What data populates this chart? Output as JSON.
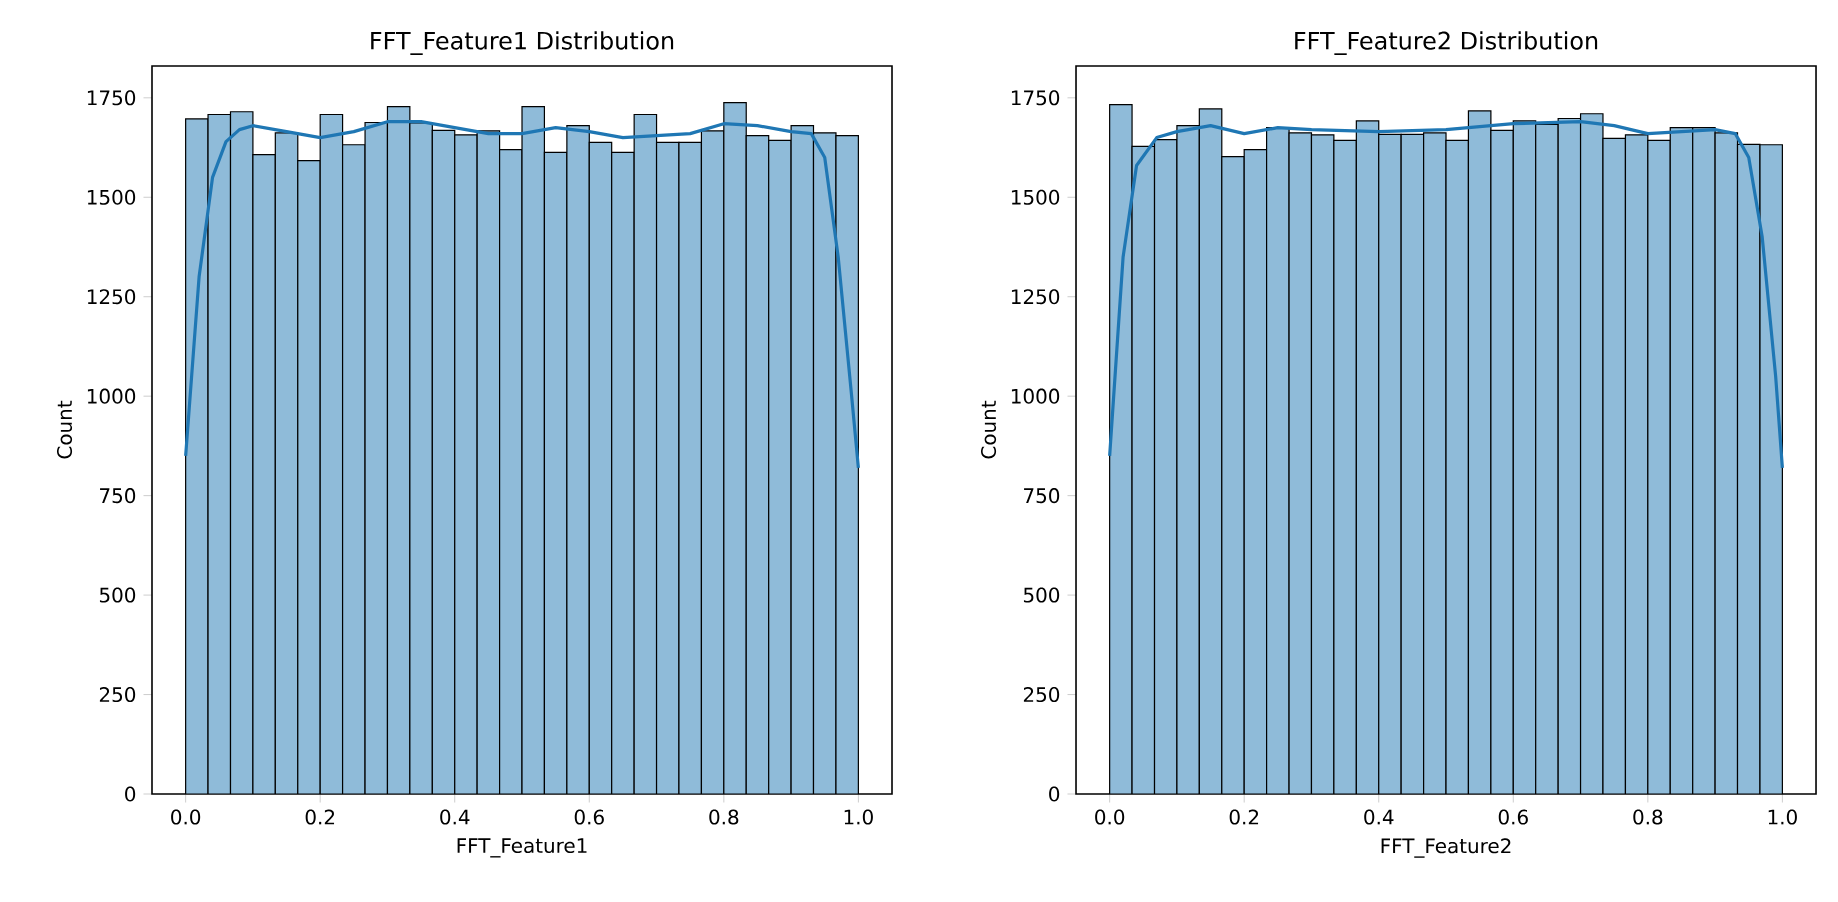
{
  "chart_data": [
    {
      "type": "histogram",
      "title": "FFT_Feature1 Distribution",
      "xlabel": "FFT_Feature1",
      "ylabel": "Count",
      "bins": [
        0,
        0.0333,
        0.0667,
        0.1,
        0.1333,
        0.1667,
        0.2,
        0.2333,
        0.2667,
        0.3,
        0.3333,
        0.3667,
        0.4,
        0.4333,
        0.4667,
        0.5,
        0.5333,
        0.5667,
        0.6,
        0.6333,
        0.6667,
        0.7,
        0.7333,
        0.7667,
        0.8,
        0.8333,
        0.8667,
        0.9,
        0.9333,
        0.9667,
        1
      ],
      "xlim": [
        -0.05,
        1.05
      ],
      "ylim": [
        0,
        1830
      ],
      "xticks": [
        {
          "value": 0,
          "label": "0.0"
        },
        {
          "value": 0.2,
          "label": "0.2"
        },
        {
          "value": 0.4,
          "label": "0.4"
        },
        {
          "value": 0.6,
          "label": "0.6"
        },
        {
          "value": 0.8,
          "label": "0.8"
        },
        {
          "value": 1,
          "label": "1.0"
        }
      ],
      "yticks": [
        0,
        250,
        500,
        750,
        1000,
        1250,
        1500,
        1750
      ],
      "series": [
        {
          "color": "#8fbbd9",
          "values": [
            1697,
            1708,
            1715,
            1607,
            1662,
            1592,
            1708,
            1632,
            1688,
            1728,
            1687,
            1668,
            1657,
            1667,
            1620,
            1728,
            1613,
            1680,
            1638,
            1613,
            1708,
            1638,
            1638,
            1667,
            1738,
            1655,
            1643,
            1680,
            1662,
            1655
          ]
        },
        {
          "type": "line",
          "color": "#1f77b4",
          "x": [
            0,
            0.02,
            0.04,
            0.06,
            0.08,
            0.1,
            0.15,
            0.2,
            0.25,
            0.3,
            0.35,
            0.4,
            0.45,
            0.5,
            0.55,
            0.6,
            0.65,
            0.7,
            0.75,
            0.8,
            0.85,
            0.9,
            0.93,
            0.95,
            0.97,
            0.99,
            1
          ],
          "values": [
            850,
            1300,
            1550,
            1640,
            1670,
            1680,
            1665,
            1650,
            1665,
            1690,
            1690,
            1675,
            1660,
            1660,
            1675,
            1665,
            1650,
            1655,
            1660,
            1685,
            1680,
            1665,
            1660,
            1600,
            1350,
            1000,
            820
          ]
        }
      ]
    },
    {
      "type": "histogram",
      "title": "FFT_Feature2 Distribution",
      "xlabel": "FFT_Feature2",
      "ylabel": "Count",
      "bins": [
        0,
        0.0333,
        0.0667,
        0.1,
        0.1333,
        0.1667,
        0.2,
        0.2333,
        0.2667,
        0.3,
        0.3333,
        0.3667,
        0.4,
        0.4333,
        0.4667,
        0.5,
        0.5333,
        0.5667,
        0.6,
        0.6333,
        0.6667,
        0.7,
        0.7333,
        0.7667,
        0.8,
        0.8333,
        0.8667,
        0.9,
        0.9333,
        0.9667,
        1
      ],
      "xlim": [
        -0.05,
        1.05
      ],
      "ylim": [
        0,
        1830
      ],
      "xticks": [
        {
          "value": 0,
          "label": "0.0"
        },
        {
          "value": 0.2,
          "label": "0.2"
        },
        {
          "value": 0.4,
          "label": "0.4"
        },
        {
          "value": 0.6,
          "label": "0.6"
        },
        {
          "value": 0.8,
          "label": "0.8"
        },
        {
          "value": 1,
          "label": "1.0"
        }
      ],
      "yticks": [
        0,
        250,
        500,
        750,
        1000,
        1250,
        1500,
        1750
      ],
      "series": [
        {
          "color": "#8fbbd9",
          "values": [
            1733,
            1628,
            1645,
            1680,
            1722,
            1602,
            1620,
            1675,
            1662,
            1657,
            1643,
            1692,
            1658,
            1658,
            1662,
            1643,
            1717,
            1668,
            1692,
            1683,
            1698,
            1710,
            1648,
            1657,
            1643,
            1675,
            1675,
            1662,
            1633,
            1632
          ]
        },
        {
          "type": "line",
          "color": "#1f77b4",
          "x": [
            0,
            0.02,
            0.04,
            0.07,
            0.1,
            0.15,
            0.2,
            0.25,
            0.3,
            0.4,
            0.5,
            0.6,
            0.7,
            0.75,
            0.8,
            0.85,
            0.9,
            0.93,
            0.95,
            0.97,
            0.99,
            1
          ],
          "values": [
            850,
            1350,
            1580,
            1650,
            1665,
            1680,
            1660,
            1675,
            1670,
            1665,
            1670,
            1685,
            1690,
            1680,
            1660,
            1665,
            1670,
            1660,
            1600,
            1400,
            1050,
            820
          ]
        }
      ]
    }
  ]
}
